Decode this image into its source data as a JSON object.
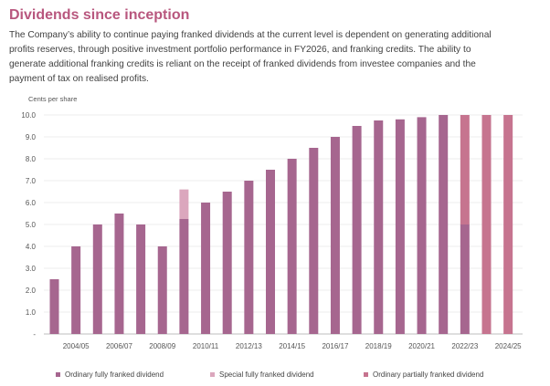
{
  "title": "Dividends since inception",
  "paragraph": [
    "The Company’s ability to continue paying franked dividends at the current level is dependent on generating additional",
    "profits reserves, through positive investment portfolio performance in FY2026, and franking credits. The ability to",
    "generate additional franking credits is reliant on the receipt of franked dividends from investee companies and the",
    "payment of tax on realised profits."
  ],
  "colors": {
    "title": "#b8577e",
    "ordinary": "#a6668f",
    "special": "#dba7bd",
    "partial": "#c6748f"
  },
  "chart_data": {
    "type": "bar",
    "stacked": true,
    "ylabel": "Cents per share",
    "ylim": [
      0,
      10
    ],
    "yticks": [
      "-",
      "1.0",
      "2.0",
      "3.0",
      "4.0",
      "5.0",
      "6.0",
      "7.0",
      "8.0",
      "9.0",
      "10.0"
    ],
    "categories": [
      "2003/04",
      "2004/05",
      "2005/06",
      "2006/07",
      "2007/08",
      "2008/09",
      "2009/10",
      "2010/11",
      "2011/12",
      "2012/13",
      "2013/14",
      "2014/15",
      "2015/16",
      "2016/17",
      "2017/18",
      "2018/19",
      "2019/20",
      "2020/21",
      "2021/22",
      "2022/23",
      "2023/24",
      "2024/25"
    ],
    "xtick_labels": [
      "2004/05",
      "2006/07",
      "2008/09",
      "2010/11",
      "2012/13",
      "2014/15",
      "2016/17",
      "2018/19",
      "2020/21",
      "2022/23",
      "2024/25"
    ],
    "series": [
      {
        "name": "Ordinary fully franked dividend",
        "color": "#a6668f",
        "values": [
          2.5,
          4.0,
          5.0,
          5.5,
          5.0,
          4.0,
          5.25,
          6.0,
          6.5,
          7.0,
          7.5,
          8.0,
          8.5,
          9.0,
          9.5,
          9.75,
          9.8,
          9.9,
          10.0,
          5.0,
          0,
          0
        ]
      },
      {
        "name": "Special fully franked dividend",
        "color": "#dba7bd",
        "values": [
          0,
          0,
          0,
          0,
          0,
          0,
          1.35,
          0,
          0,
          0,
          0,
          0,
          0,
          0,
          0,
          0,
          0,
          0,
          0,
          0,
          0,
          0
        ]
      },
      {
        "name": "Ordinary partially franked dividend",
        "color": "#c6748f",
        "values": [
          0,
          0,
          0,
          0,
          0,
          0,
          0,
          0,
          0,
          0,
          0,
          0,
          0,
          0,
          0,
          0,
          0,
          0,
          0,
          5.0,
          10.0,
          10.0
        ]
      }
    ],
    "legend_position": "bottom",
    "grid": true
  }
}
